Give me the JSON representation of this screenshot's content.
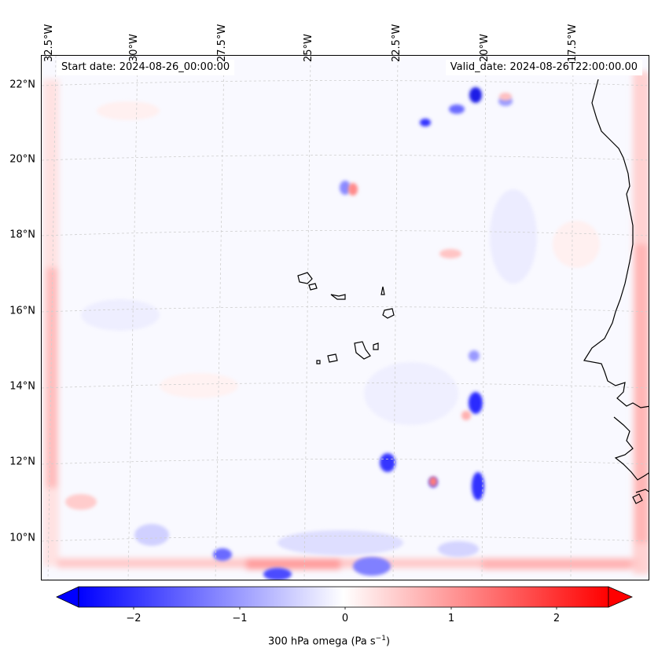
{
  "map": {
    "start_date": "Start date: 2024-08-26_00:00:00",
    "valid_date": "Valid_date: 2024-08-26T22:00:00.00",
    "lat_labels": [
      "22°N",
      "20°N",
      "18°N",
      "16°N",
      "14°N",
      "12°N",
      "10°N"
    ],
    "lon_labels": [
      "32.5°W",
      "30°W",
      "27.5°W",
      "25°W",
      "22.5°W",
      "20°W",
      "17.5°W"
    ],
    "field": "300 hPa omega",
    "colormap": {
      "negative": "#0000ff",
      "zero": "#ffffff",
      "positive": "#ff0000"
    },
    "coastline_color": "#000000",
    "gridlines": true
  },
  "colorbar": {
    "label": "300 hPa omega (Pa s",
    "label_exponent": "−1",
    "label_close": ")",
    "min": -2.5,
    "max": 2.5,
    "ticks": [
      "−2",
      "−1",
      "0",
      "1",
      "2"
    ],
    "tick_values": [
      -2,
      -1,
      0,
      1,
      2
    ],
    "extend": "both"
  }
}
